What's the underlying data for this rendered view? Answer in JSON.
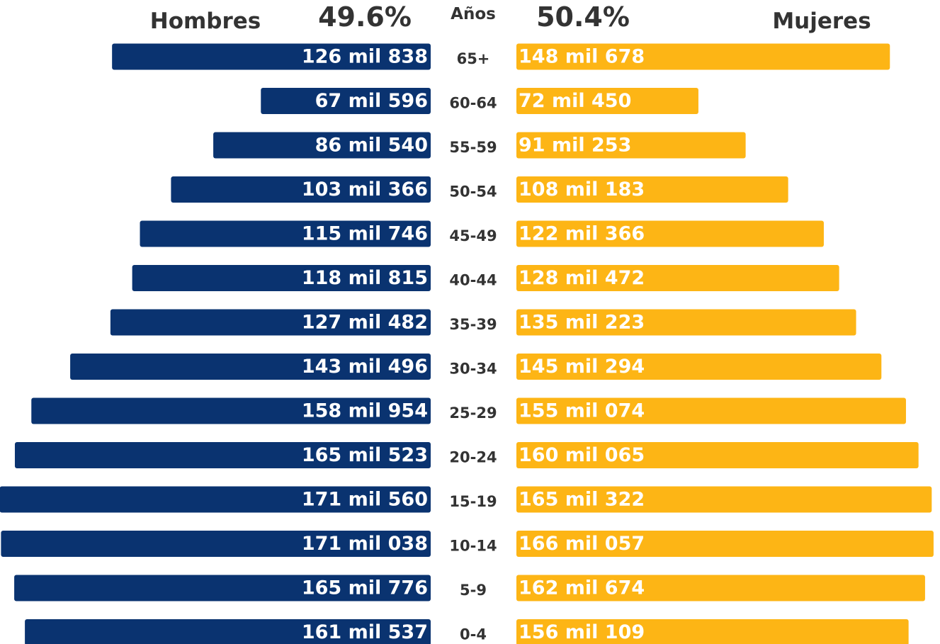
{
  "chart_data": {
    "type": "pyramid",
    "category_label": "Años",
    "categories": [
      "65+",
      "60-64",
      "55-59",
      "50-54",
      "45-49",
      "40-44",
      "35-39",
      "30-34",
      "25-29",
      "20-24",
      "15-19",
      "10-14",
      "5-9",
      "0-4"
    ],
    "xlim": [
      0,
      172000
    ],
    "series": [
      {
        "name": "Hombres",
        "share": "49.6%",
        "color": "#0a3370",
        "values": [
          126838,
          67596,
          86540,
          103366,
          115746,
          118815,
          127482,
          143496,
          158954,
          165523,
          171560,
          171038,
          165776,
          161537
        ],
        "value_labels": [
          "126 mil 838",
          "67 mil 596",
          "86 mil 540",
          "103 mil 366",
          "115 mil 746",
          "118 mil 815",
          "127 mil 482",
          "143 mil 496",
          "158 mil 954",
          "165 mil 523",
          "171 mil 560",
          "171 mil 038",
          "165 mil 776",
          "161 mil 537"
        ]
      },
      {
        "name": "Mujeres",
        "share": "50.4%",
        "color": "#fdb515",
        "values": [
          148678,
          72450,
          91253,
          108183,
          122366,
          128472,
          135223,
          145294,
          155074,
          160065,
          165322,
          166057,
          162674,
          156109
        ],
        "value_labels": [
          "148 mil 678",
          "72 mil 450",
          "91 mil 253",
          "108 mil 183",
          "122 mil 366",
          "128 mil 472",
          "135 mil 223",
          "145 mil 294",
          "155 mil 074",
          "160 mil 065",
          "165 mil 322",
          "166 mil 057",
          "162 mil 674",
          "156 mil 109"
        ]
      }
    ]
  }
}
